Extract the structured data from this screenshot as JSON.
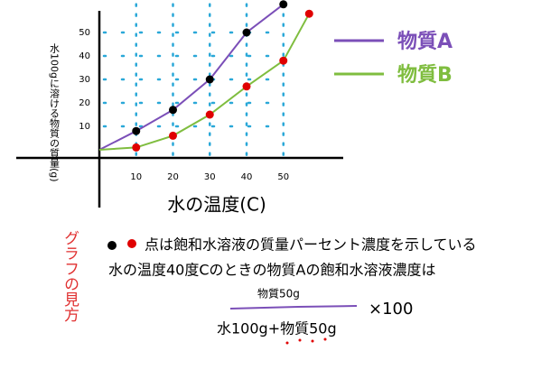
{
  "chart_data": {
    "type": "line",
    "x_label": "水の温度(C)",
    "y_label": "水100gに溶ける物質の質量(g)",
    "x": [
      0,
      10,
      20,
      30,
      40,
      50,
      57
    ],
    "series": [
      {
        "name": "物質A",
        "color": "#7b4fb8",
        "values": [
          0,
          8,
          17,
          30,
          50,
          62,
          null
        ]
      },
      {
        "name": "物質B",
        "color": "#7fbd3f",
        "values": [
          0,
          1,
          6,
          15,
          27,
          38,
          58
        ]
      }
    ],
    "xlim": [
      0,
      66
    ],
    "ylim": [
      0,
      64
    ],
    "xticks": [
      10,
      20,
      30,
      40,
      50
    ],
    "yticks": [
      10,
      20,
      30,
      40,
      50
    ],
    "grid": true,
    "grid_color": "#2aa8d8",
    "marker_colors": [
      "#000000",
      "#e00000"
    ],
    "annotations": {
      "side_note": "グラフの見方",
      "line1": "点は飽和水溶液の質量パーセント濃度を示している",
      "line2": "水の温度40度Cのときの物質Aの飽和水溶液濃度は",
      "numerator": "物質50g",
      "denominator": "水100g+物質50g",
      "multiplier": "×100"
    }
  }
}
